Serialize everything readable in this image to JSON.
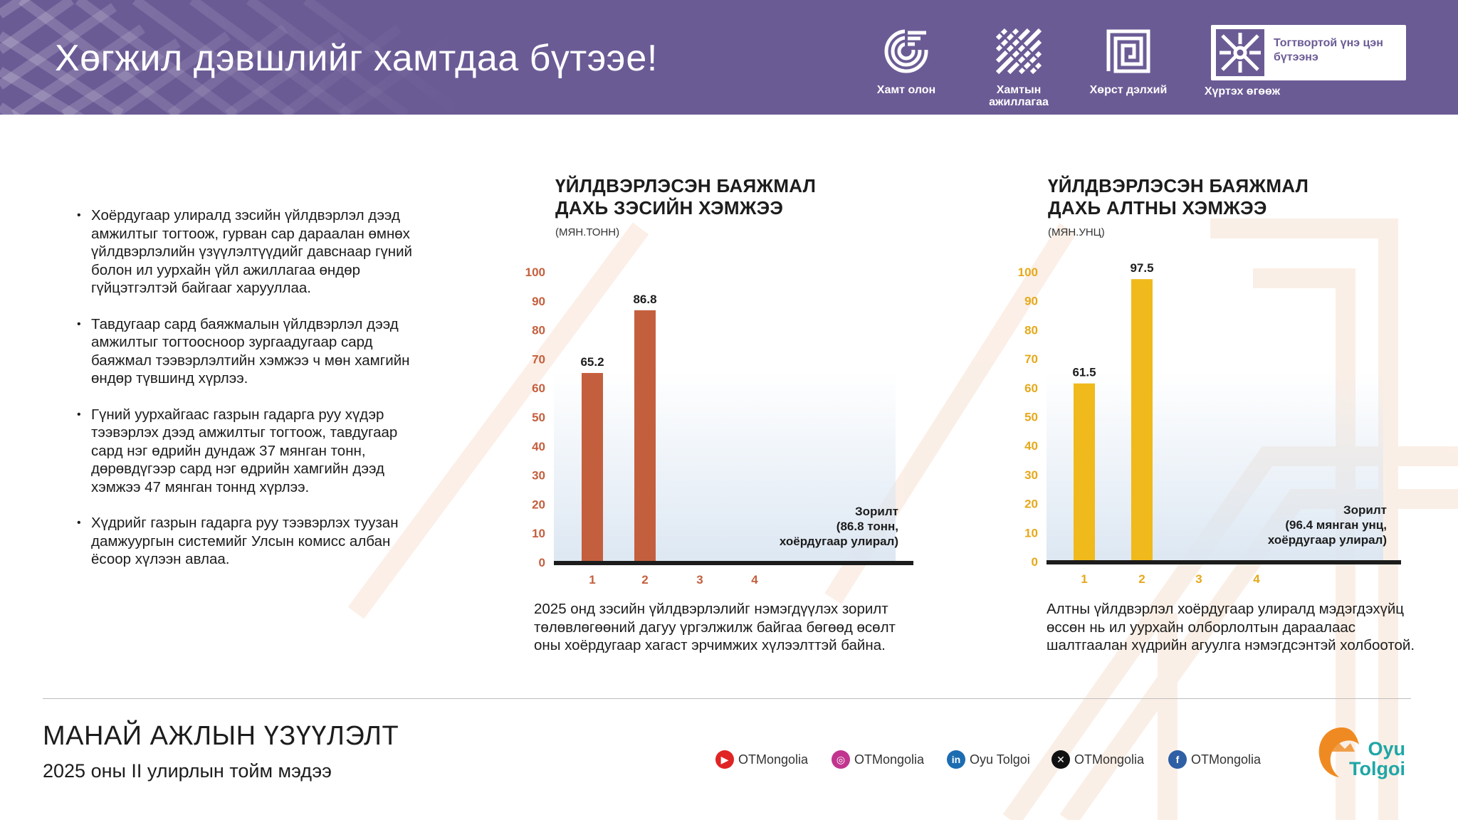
{
  "header": {
    "title": "Хөгжил дэвшлийг хамтдаа бүтээе!",
    "values": [
      {
        "label": "Хамт олон",
        "icon": "circle-pattern-icon"
      },
      {
        "label": "Хамтын ажиллагаа",
        "icon": "weave-pattern-icon"
      },
      {
        "label": "Хөрст дэлхий",
        "icon": "square-spiral-icon"
      },
      {
        "label": "Хүртэх өгөөж",
        "icon": "swirl-pattern-icon"
      }
    ],
    "box_text": "Тогтвортой үнэ цэн бүтээнэ"
  },
  "bullets": [
    "Хоёрдугаар улиралд зэсийн үйлдвэрлэл дээд амжилтыг тогтоож, гурван сар дараалан өмнөх үйлдвэрлэлийн үзүүлэлтүүдийг давснаар гүний болон ил уурхайн үйл ажиллагаа өндөр гүйцэтгэлтэй байгааг харууллаа.",
    "Тавдугаар сард баяжмалын үйлдвэрлэл дээд амжилтыг тогтоосноор зургаадугаар сард баяжмал тээвэрлэлтийн хэмжээ ч мөн хамгийн өндөр түвшинд хүрлээ.",
    "Гүний уурхайгаас газрын гадарга руу хүдэр тээвэрлэх дээд амжилтыг тогтоож, тавдугаар сард нэг өдрийн дундаж 37 мянган тонн, дөрөвдүгээр сард нэг өдрийн хамгийн дээд хэмжээ 47 мянган тоннд хүрлээ.",
    "Хүдрийг газрын гадарга руу тээвэрлэх туузан дамжуургын системийг Улсын комисс албан ёсоор хүлээн авлаа."
  ],
  "chart_data": [
    {
      "type": "bar",
      "title": "ҮЙЛДВЭРЛЭСЭН БАЯЖМАЛ ДАХЬ ЗЭСИЙН ХЭМЖЭЭ",
      "unit": "(МЯН.ТОНН)",
      "categories": [
        "1",
        "2",
        "3",
        "4"
      ],
      "values": [
        65.2,
        86.8,
        null,
        null
      ],
      "ylim": [
        0,
        100
      ],
      "yticks": [
        0,
        10,
        20,
        30,
        40,
        50,
        60,
        70,
        80,
        90,
        100
      ],
      "bar_color": "#c45f3e",
      "tick_color": "#c45f3e",
      "target_lines": [
        "Зорилт",
        "(86.8 тонн,",
        "хоёрдугаар улирал)"
      ],
      "description": "2025 онд зэсийн үйлдвэрлэлийг нэмэгдүүлэх зорилт төлөвлөгөөний дагуу үргэлжилж байгаа бөгөөд өсөлт оны хоёрдугаар хагаст эрчимжих хүлээлттэй байна."
    },
    {
      "type": "bar",
      "title": "ҮЙЛДВЭРЛЭСЭН БАЯЖМАЛ ДАХЬ АЛТНЫ ХЭМЖЭЭ",
      "unit": "(МЯН.УНЦ)",
      "categories": [
        "1",
        "2",
        "3",
        "4"
      ],
      "values": [
        61.5,
        97.5,
        null,
        null
      ],
      "ylim": [
        0,
        100
      ],
      "yticks": [
        0,
        10,
        20,
        30,
        40,
        50,
        60,
        70,
        80,
        90,
        100
      ],
      "bar_color": "#f0b91c",
      "tick_color": "#e5a91a",
      "target_lines": [
        "Зорилт",
        "(96.4 мянган унц,",
        "хоёрдугаар улирал)"
      ],
      "description": "Алтны үйлдвэрлэл хоёрдугаар улиралд мэдэгдэхүйц өссөн нь ил уурхайн олборлолтын дараалаас шалтгаалан хүдрийн агуулга нэмэгдсэнтэй холбоотой."
    }
  ],
  "footer": {
    "title": "МАНАЙ АЖЛЫН ҮЗҮҮЛЭЛТ",
    "subtitle": "2025 оны II улирлын тойм мэдээ",
    "socials": [
      {
        "icon": "youtube-icon",
        "label": "OTMongolia",
        "color": "#e02424"
      },
      {
        "icon": "instagram-icon",
        "label": "OTMongolia",
        "color": "#c1358f"
      },
      {
        "icon": "linkedin-icon",
        "label": "Oyu Tolgoi",
        "color": "#1c6cb1"
      },
      {
        "icon": "x-icon",
        "label": "OTMongolia",
        "color": "#111111"
      },
      {
        "icon": "facebook-icon",
        "label": "OTMongolia",
        "color": "#2f5fa5"
      }
    ],
    "logo": {
      "line1": "Oyu",
      "line2": "Tolgoi",
      "text_color": "#1fa6a6",
      "mark_color": "#ef8a22"
    }
  },
  "colors": {
    "header_bg": "#6b5b95",
    "plot_gradient": "#dbe6f2",
    "axis": "#1c1c1c"
  }
}
